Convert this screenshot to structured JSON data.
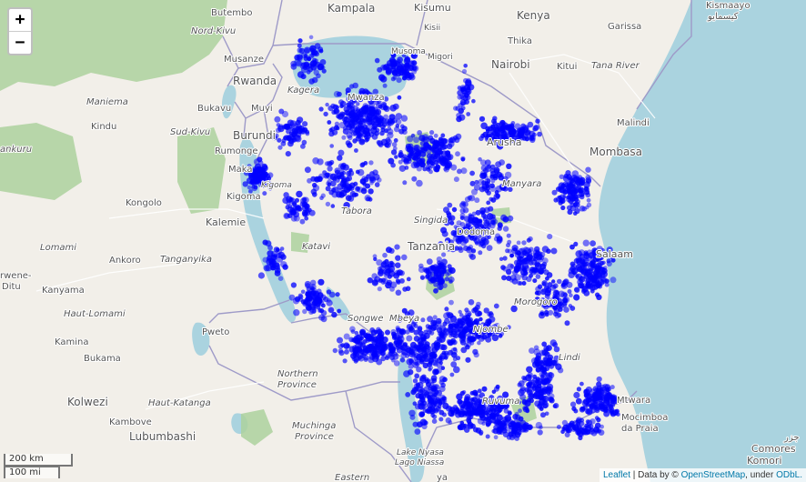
{
  "map": {
    "zoom_in_label": "+",
    "zoom_out_label": "−",
    "scale_km": "200 km",
    "scale_mi": "100 mi",
    "attribution": {
      "leaflet": "Leaflet",
      "separator": " | Data by © ",
      "osm": "OpenStreetMap",
      "under": ", under ",
      "odbl": "ODbL."
    },
    "colors": {
      "land": "#f2efe9",
      "water": "#aad3df",
      "forest": "#add19e",
      "border": "#9e9ac8",
      "points": "#0000ff"
    },
    "labels": {
      "kampala": "Kampala",
      "kisumu": "Kisumu",
      "kenya": "Kenya",
      "butembo": "Butembo",
      "nord_kivu": "Nord-Kivu",
      "garissa": "Garissa",
      "kismayo": "Kismaayo",
      "kismayo_ar": "كيسمايو",
      "kisii": "Kisii",
      "migori": "Migori",
      "musoma": "Musoma",
      "thika": "Thika",
      "nairobi": "Nairobi",
      "kitui": "Kitui",
      "tana_river": "Tana River",
      "musanze": "Musanze",
      "rwanda": "Rwanda",
      "kagera": "Kagera",
      "mwanza": "Mwanza",
      "arusha": "Arusha",
      "malindi": "Malindi",
      "mombasa": "Mombasa",
      "maniema": "Maniema",
      "bukavu": "Bukavu",
      "muyinga": "Muyi",
      "kindu": "Kindu",
      "sud_kivu": "Sud-Kivu",
      "burundi": "Burundi",
      "rumonge": "Rumonge",
      "makamba": "Maka",
      "kankulu": "ankuru",
      "kongolo": "Kongolo",
      "kigoma_region": "Kigoma",
      "kigoma": "Kigoma",
      "manyara": "Manyara",
      "tabora": "Tabora",
      "singida": "Singida",
      "tanzania": "Tanzania",
      "dodoma": "Dodoma",
      "salaam": "Salaam",
      "kalemie": "Kalemie",
      "lomami": "Lomami",
      "katavi": "Katavi",
      "tanganyika": "Tanganyika",
      "ankoro": "Ankoro",
      "lwene": "rwene-",
      "ditu": "Ditu",
      "kanyama": "Kanyama",
      "morogoro": "Morogoro",
      "haut_lomami": "Haut-Lomami",
      "songwe": "Songwe",
      "mbeya": "Mbeya",
      "pweto": "Pweto",
      "kamina": "Kamina",
      "njombe": "Njombe",
      "lindi": "Lindi",
      "bukama": "Bukama",
      "northern": "Northern",
      "province": "Province",
      "ruvuma": "Ruvuma",
      "kolwezi": "Kolwezi",
      "haut_katanga": "Haut-Katanga",
      "kambove": "Kambove",
      "mtwara": "Mtwara",
      "mocimboa": "Mocimboa",
      "da_praia": "da Praia",
      "lubumbashi": "Lubumbashi",
      "muchinga": "Muchinga",
      "muchinga_prov": "Province",
      "lake_nyasa": "Lake Nyasa",
      "lago_niassa": "Lago Niassa",
      "comores": "Comores",
      "komori": "Komori",
      "comores_ar": "جزر",
      "eastern": "Eastern",
      "ya": "ya"
    }
  }
}
